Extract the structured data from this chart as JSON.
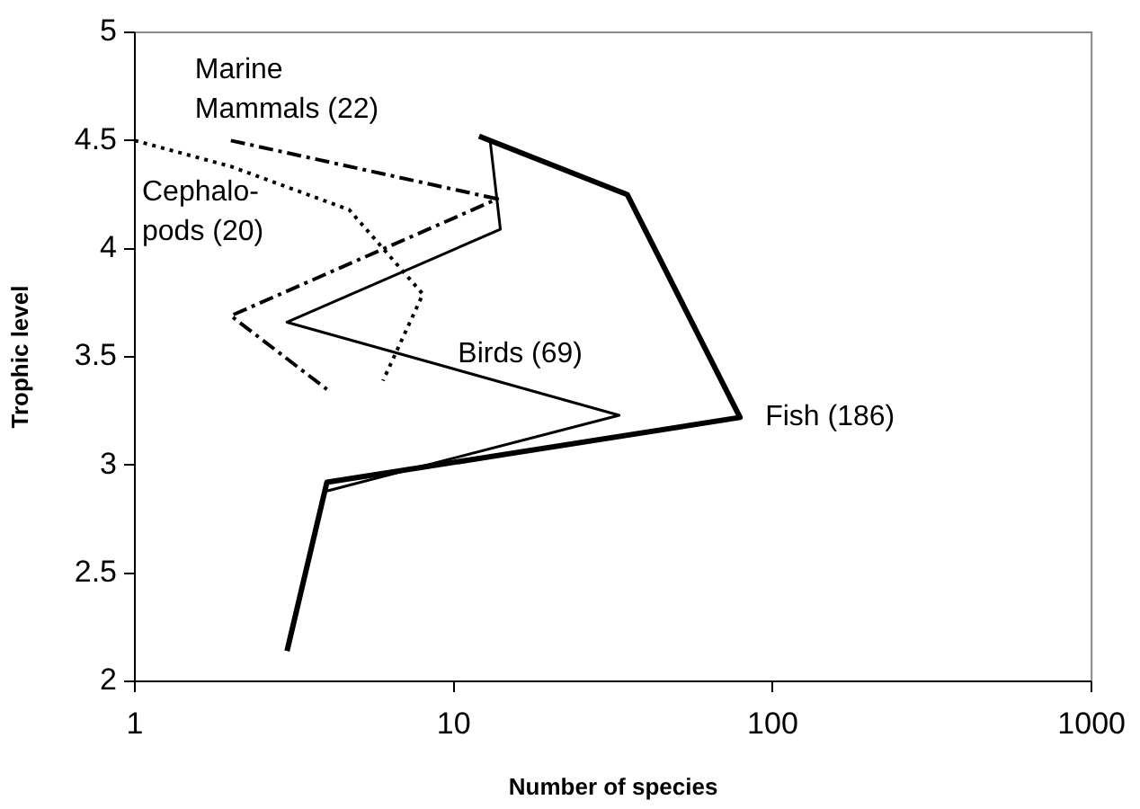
{
  "chart_data": {
    "type": "line",
    "xlabel": "Number of species",
    "ylabel": "Trophic level",
    "log": "x",
    "grid": false,
    "legend": false,
    "marker": "none",
    "xlim": [
      1,
      1000
    ],
    "xticks": [
      1,
      10,
      100,
      1000
    ],
    "ylim": [
      2,
      5
    ],
    "yticks": [
      2,
      2.5,
      3,
      3.5,
      4,
      4.5,
      5
    ],
    "series": [
      {
        "name": "Fish (186)",
        "color": "#000000",
        "line_style": "solid",
        "x": [
          12,
          35,
          79,
          4,
          3
        ],
        "values": [
          4.52,
          4.25,
          3.22,
          2.92,
          2.14
        ]
      },
      {
        "name": "Birds (69)",
        "color": "#000000",
        "line_style": "solid",
        "x": [
          13,
          14,
          3,
          33,
          4
        ],
        "values": [
          4.5,
          4.09,
          3.66,
          3.23,
          2.88
        ]
      },
      {
        "name": "Marine\nMammals (22)",
        "color": "#000000",
        "line_style": "dashed",
        "x": [
          2,
          13.7,
          2,
          4
        ],
        "values": [
          4.5,
          4.23,
          3.69,
          3.35
        ]
      },
      {
        "name": "Cephalo-\npods (20)",
        "color": "#000000",
        "line_style": "dotted",
        "x": [
          1,
          2,
          4.7,
          8,
          6
        ],
        "values": [
          4.5,
          4.38,
          4.18,
          3.79,
          3.39
        ]
      }
    ]
  }
}
